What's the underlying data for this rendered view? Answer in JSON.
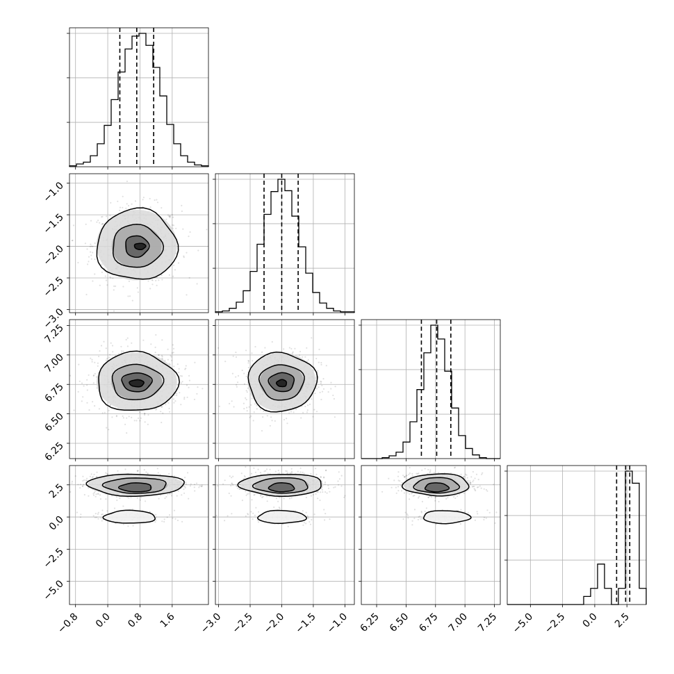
{
  "chart_data": {
    "type": "corner",
    "title": "",
    "parameters": [
      {
        "name": "",
        "range": [
          -0.95,
          2.5
        ],
        "ticks": [
          -0.8,
          0.0,
          0.8,
          1.6
        ],
        "tick_labels": [
          "−0.8",
          "0.0",
          "0.8",
          "1.6"
        ],
        "quantiles": [
          0.3,
          0.72,
          1.14
        ],
        "histogram": {
          "edges_start": -0.95,
          "bin_width": 0.1725,
          "counts": [
            1,
            3,
            5,
            12,
            25,
            45,
            73,
            103,
            128,
            142,
            145,
            132,
            108,
            77,
            46,
            25,
            12,
            5,
            2,
            1
          ]
        }
      },
      {
        "name": "",
        "range": [
          -3.05,
          -0.85
        ],
        "ticks": [
          -3.0,
          -2.5,
          -2.0,
          -1.5,
          -1.0
        ],
        "tick_labels": [
          "−3.0",
          "−2.5",
          "−2.0",
          "−1.5",
          "−1.0"
        ],
        "quantiles": [
          -2.28,
          -2.0,
          -1.74
        ],
        "histogram": {
          "edges_start": -3.05,
          "bin_width": 0.11,
          "counts": [
            1,
            2,
            5,
            12,
            25,
            47,
            78,
            112,
            138,
            152,
            139,
            110,
            75,
            45,
            23,
            11,
            5,
            2,
            1,
            1
          ]
        }
      },
      {
        "name": "",
        "range": [
          6.12,
          7.3
        ],
        "ticks": [
          6.25,
          6.5,
          6.75,
          7.0,
          7.25
        ],
        "tick_labels": [
          "6.25",
          "6.50",
          "6.75",
          "7.00",
          "7.25"
        ],
        "quantiles": [
          6.63,
          6.76,
          6.88
        ],
        "histogram": {
          "edges_start": 6.12,
          "bin_width": 0.059,
          "counts": [
            0,
            0,
            0,
            1,
            3,
            7,
            18,
            40,
            75,
            115,
            145,
            130,
            95,
            55,
            25,
            11,
            4,
            1,
            0,
            0
          ]
        }
      },
      {
        "name": "",
        "range": [
          -6.8,
          4.0
        ],
        "ticks": [
          -5.0,
          -2.5,
          0.0,
          2.5
        ],
        "tick_labels": [
          "−5.0",
          "−2.5",
          "0.0",
          "2.5"
        ],
        "quantiles": [
          1.7,
          2.4,
          2.72
        ],
        "histogram": {
          "edges_start": -6.8,
          "bin_width": 0.54,
          "counts": [
            0,
            0,
            0,
            0,
            0,
            0,
            0,
            0,
            0,
            0,
            0,
            2,
            4,
            10,
            4,
            0,
            4,
            33,
            30,
            4
          ]
        }
      }
    ],
    "panels_2d": [
      {
        "x_param": 0,
        "y_param": 1,
        "contours": [
          {
            "center": [
              0.72,
              -1.98
            ],
            "rx": 1.0,
            "ry": 0.56
          },
          {
            "center": [
              0.72,
              -2.0
            ],
            "rx": 0.62,
            "ry": 0.34
          },
          {
            "center": [
              0.72,
              -2.0
            ],
            "rx": 0.29,
            "ry": 0.17
          },
          {
            "center": [
              0.8,
              -2.0
            ],
            "rx": 0.14,
            "ry": 0.05
          }
        ]
      },
      {
        "x_param": 0,
        "y_param": 2,
        "contours": [
          {
            "center": [
              0.72,
              6.77
            ],
            "rx": 1.0,
            "ry": 0.25
          },
          {
            "center": [
              0.72,
              6.77
            ],
            "rx": 0.63,
            "ry": 0.15
          },
          {
            "center": [
              0.72,
              6.77
            ],
            "rx": 0.37,
            "ry": 0.08
          },
          {
            "center": [
              0.72,
              6.76
            ],
            "rx": 0.18,
            "ry": 0.03
          }
        ]
      },
      {
        "x_param": 1,
        "y_param": 2,
        "contours": [
          {
            "center": [
              -2.0,
              6.77
            ],
            "rx": 0.54,
            "ry": 0.25
          },
          {
            "center": [
              -2.0,
              6.77
            ],
            "rx": 0.35,
            "ry": 0.15
          },
          {
            "center": [
              -2.0,
              6.77
            ],
            "rx": 0.2,
            "ry": 0.08
          },
          {
            "center": [
              -2.0,
              6.76
            ],
            "rx": 0.08,
            "ry": 0.03
          }
        ]
      },
      {
        "x_param": 0,
        "y_param": 3,
        "contours": [
          {
            "center": [
              0.7,
              2.5
            ],
            "rx": 1.2,
            "ry": 0.85
          },
          {
            "center": [
              0.7,
              2.45
            ],
            "rx": 0.78,
            "ry": 0.6
          },
          {
            "center": [
              0.7,
              2.3
            ],
            "rx": 0.4,
            "ry": 0.35
          },
          {
            "center": [
              0.55,
              0.0
            ],
            "rx": 0.64,
            "ry": 0.5
          }
        ]
      },
      {
        "x_param": 1,
        "y_param": 3,
        "contours": [
          {
            "center": [
              -2.0,
              2.5
            ],
            "rx": 0.66,
            "ry": 0.85
          },
          {
            "center": [
              -2.0,
              2.45
            ],
            "rx": 0.43,
            "ry": 0.6
          },
          {
            "center": [
              -2.0,
              2.3
            ],
            "rx": 0.2,
            "ry": 0.35
          },
          {
            "center": [
              -2.0,
              0.0
            ],
            "rx": 0.38,
            "ry": 0.5
          }
        ]
      },
      {
        "x_param": 2,
        "y_param": 3,
        "contours": [
          {
            "center": [
              6.76,
              2.5
            ],
            "rx": 0.28,
            "ry": 0.85
          },
          {
            "center": [
              6.76,
              2.45
            ],
            "rx": 0.19,
            "ry": 0.6
          },
          {
            "center": [
              6.76,
              2.3
            ],
            "rx": 0.1,
            "ry": 0.35
          },
          {
            "center": [
              6.84,
              0.0
            ],
            "rx": 0.2,
            "ry": 0.5
          }
        ]
      }
    ],
    "colors": {
      "line": "#000000",
      "grid": "#b0b0b0",
      "points": "#000000"
    },
    "grid": true,
    "legend": "none"
  }
}
